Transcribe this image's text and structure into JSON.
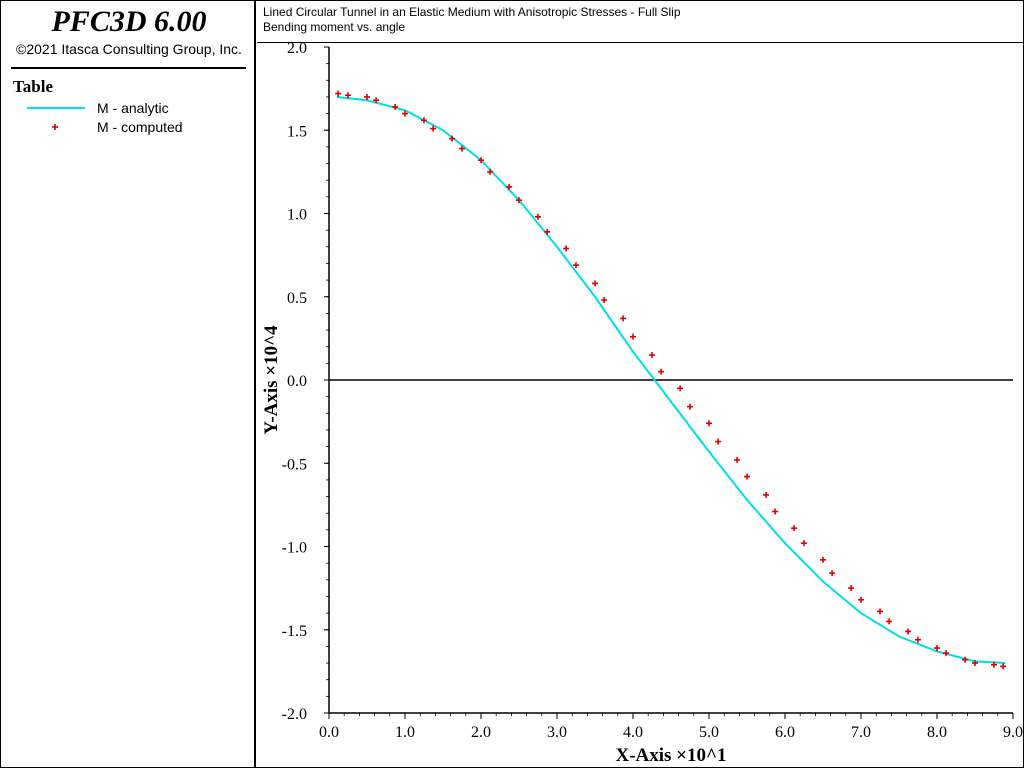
{
  "app": {
    "title": "PFC3D 6.00",
    "copyright": "©2021 Itasca Consulting Group, Inc."
  },
  "legend": {
    "heading": "Table",
    "entries": [
      {
        "label": "M - analytic",
        "style": "line",
        "color": "#00e0e0"
      },
      {
        "label": "M - computed",
        "style": "marker",
        "color": "#e00000"
      }
    ]
  },
  "caption": {
    "title": "Lined Circular Tunnel in an Elastic Medium with Anisotropic Stresses - Full Slip",
    "subtitle": "Bending moment vs. angle"
  },
  "chart_data": {
    "type": "line",
    "title": "Lined Circular Tunnel in an Elastic Medium with Anisotropic Stresses - Full Slip",
    "subtitle": "Bending moment vs. angle",
    "xlabel": "X-Axis ×10^1",
    "ylabel": "Y-Axis ×10^4",
    "xlim": [
      0,
      9
    ],
    "ylim": [
      -2,
      2
    ],
    "x_ticks": [
      "0.0",
      "1.0",
      "2.0",
      "3.0",
      "4.0",
      "5.0",
      "6.0",
      "7.0",
      "8.0",
      "9.0"
    ],
    "y_ticks": [
      "2.0",
      "1.5",
      "1.0",
      "0.5",
      "0.0",
      "-0.5",
      "-1.0",
      "-1.5",
      "-2.0"
    ],
    "zero_line": true,
    "series": [
      {
        "name": "M - analytic",
        "color": "#00e0e0",
        "style": "line",
        "x": [
          0.1,
          0.5,
          1.0,
          1.5,
          2.0,
          2.5,
          3.0,
          3.5,
          4.0,
          4.5,
          5.0,
          5.5,
          6.0,
          6.5,
          7.0,
          7.5,
          8.0,
          8.5,
          8.9
        ],
        "y": [
          1.7,
          1.68,
          1.62,
          1.5,
          1.32,
          1.08,
          0.8,
          0.5,
          0.17,
          -0.13,
          -0.43,
          -0.72,
          -0.98,
          -1.21,
          -1.4,
          -1.54,
          -1.63,
          -1.69,
          -1.7
        ]
      },
      {
        "name": "M - computed",
        "color": "#e00000",
        "style": "marker",
        "x": [
          0.12,
          0.25,
          0.5,
          0.62,
          0.87,
          1.0,
          1.25,
          1.37,
          1.62,
          1.75,
          2.0,
          2.12,
          2.37,
          2.5,
          2.75,
          2.87,
          3.12,
          3.25,
          3.5,
          3.62,
          3.87,
          4.0,
          4.25,
          4.37,
          4.62,
          4.75,
          5.0,
          5.12,
          5.37,
          5.5,
          5.75,
          5.87,
          6.12,
          6.25,
          6.5,
          6.62,
          6.87,
          7.0,
          7.25,
          7.37,
          7.62,
          7.75,
          8.0,
          8.12,
          8.37,
          8.5,
          8.75,
          8.87
        ],
        "y": [
          1.72,
          1.71,
          1.7,
          1.68,
          1.64,
          1.6,
          1.56,
          1.51,
          1.45,
          1.39,
          1.32,
          1.25,
          1.16,
          1.08,
          0.98,
          0.89,
          0.79,
          0.69,
          0.58,
          0.48,
          0.37,
          0.26,
          0.15,
          0.05,
          -0.05,
          -0.16,
          -0.26,
          -0.37,
          -0.48,
          -0.58,
          -0.69,
          -0.79,
          -0.89,
          -0.98,
          -1.08,
          -1.16,
          -1.25,
          -1.32,
          -1.39,
          -1.45,
          -1.51,
          -1.56,
          -1.61,
          -1.64,
          -1.68,
          -1.7,
          -1.71,
          -1.72
        ]
      }
    ]
  }
}
